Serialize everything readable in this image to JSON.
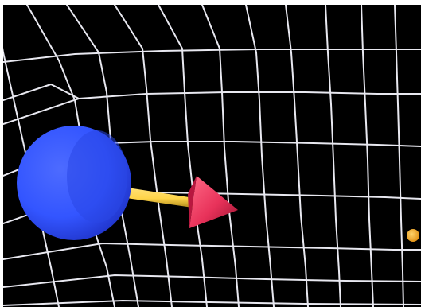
{
  "scene": {
    "background_color": "#000000",
    "grid_color": "#e8e8f0",
    "objects": [
      {
        "name": "sphere",
        "color": "#3355ff",
        "highlight": "#5f7dff",
        "shadow": "#1f33c8"
      },
      {
        "name": "arrow-shaft",
        "color": "#ffd54a",
        "shadow": "#b08a1a"
      },
      {
        "name": "arrow-cone",
        "color": "#e8325a",
        "shadow": "#9a1230",
        "highlight": "#ff6a86"
      },
      {
        "name": "small-ball",
        "color": "#ffb02a",
        "highlight": "#ffd36a"
      }
    ]
  }
}
